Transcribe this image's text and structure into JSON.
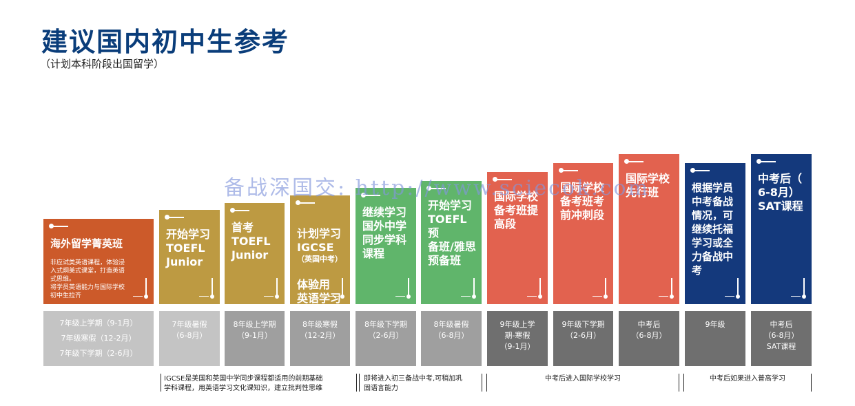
{
  "header": {
    "title": "建议国内初中生参考",
    "subtitle": "（计划本科阶段出国留学）"
  },
  "watermark": "备战深国交: http://www.sciecok.com",
  "colors": {
    "title": "#0a3d7a",
    "orange": "#cc5a2a",
    "gold": "#bd9a42",
    "green": "#60b56b",
    "coral": "#e2624f",
    "navy": "#14397c",
    "time_light": "#c4c4c4",
    "time_mid": "#9f9f9f",
    "time_dark": "#6f6f6f"
  },
  "stages": [
    {
      "title": "海外留学菁英班",
      "desc": "非应试类英语课程，体验浸\n入式炯美式课堂，打造英语\n式思维。\n将学员英语能力与国际学校\n初中生拉齐",
      "time": "7年级上学期（9-1月）\n\n7年级寒假（12-2月）\n\n7年级下学期（2-6月）"
    },
    {
      "title": "开始学习\nTOEFL\nJunior",
      "time": "7年级暑假\n（6-8月）"
    },
    {
      "title": "首考\nTOEFL\nJunior",
      "time": "8年级上学期\n（9-1月）"
    },
    {
      "title": "计划学习\nIGCSE",
      "small": "（英国中考）",
      "title2": "体验用\n英语学习\n文化课",
      "time": "8年级寒假\n（12-2月）"
    },
    {
      "title": "继续学习\n国外中学\n同步学科\n课程",
      "time": "8年级下学期\n（2-6月）"
    },
    {
      "title": "开始学习\nTOEFL预\n备班/雅思\n预备班",
      "time": "8年级暑假\n（6-8月）"
    },
    {
      "title": "国际学校\n备考班提\n高段",
      "time": "9年级上学\n期-寒假\n（9-1月）"
    },
    {
      "title": "国际学校\n备考班考\n前冲刺段",
      "time": "9年级下学期\n（2-6月）"
    },
    {
      "title": "国际学校\n先行班",
      "time": "中考后\n（6-8月）"
    },
    {
      "title": "根据学员\n中考备战\n情况，可\n继续托福\n学习或全\n力备战中\n考",
      "time": "9年级"
    },
    {
      "title": "中考后（\n6-8月）\nSAT课程",
      "time": "中考后\n（6-8月）\nSAT课程"
    }
  ],
  "notes": [
    "IGCSE是美国和英国中学同步课程都适用的前期基础\n学科课程，用英语学习文化课知识，建立批判性思维",
    "即将进入初三备战中考,可稍加巩\n固语言能力",
    "中考后进入国际学校学习",
    "中考后如果进入普高学习"
  ]
}
